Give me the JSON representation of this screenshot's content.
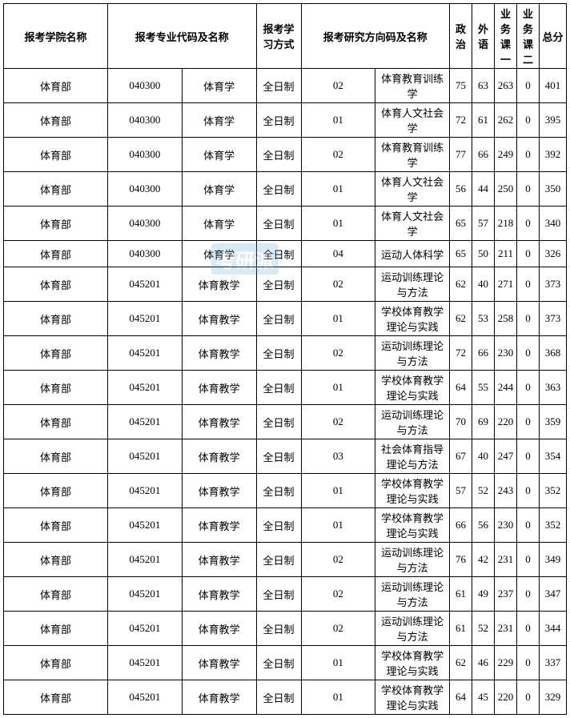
{
  "headers": {
    "school": "报考学院名称",
    "major": "报考专业代码及名称",
    "mode": "报考学习方式",
    "direction": "报考研究方向码及名称",
    "politics": "政治",
    "foreign": "外语",
    "course1": "业务课一",
    "course2": "业务课二",
    "total": "总分"
  },
  "watermark_text": "考研派",
  "watermark_sub": "kaoyan",
  "columns_width": {
    "school": 130,
    "code": 56,
    "major": 90,
    "mode": 56,
    "dircode": 26,
    "dirname": 142,
    "score": 28,
    "total": 34
  },
  "rows": [
    {
      "school": "体育部",
      "code": "040300",
      "major": "体育学",
      "mode": "全日制",
      "dircode": "02",
      "dirname": "体育教育训练学",
      "politics": 75,
      "foreign": 63,
      "course1": 263,
      "course2": 0,
      "total": 401
    },
    {
      "school": "体育部",
      "code": "040300",
      "major": "体育学",
      "mode": "全日制",
      "dircode": "01",
      "dirname": "体育人文社会学",
      "politics": 72,
      "foreign": 61,
      "course1": 262,
      "course2": 0,
      "total": 395
    },
    {
      "school": "体育部",
      "code": "040300",
      "major": "体育学",
      "mode": "全日制",
      "dircode": "02",
      "dirname": "体育教育训练学",
      "politics": 77,
      "foreign": 66,
      "course1": 249,
      "course2": 0,
      "total": 392
    },
    {
      "school": "体育部",
      "code": "040300",
      "major": "体育学",
      "mode": "全日制",
      "dircode": "01",
      "dirname": "体育人文社会学",
      "politics": 56,
      "foreign": 44,
      "course1": 250,
      "course2": 0,
      "total": 350
    },
    {
      "school": "体育部",
      "code": "040300",
      "major": "体育学",
      "mode": "全日制",
      "dircode": "01",
      "dirname": "体育人文社会学",
      "politics": 65,
      "foreign": 57,
      "course1": 218,
      "course2": 0,
      "total": 340
    },
    {
      "school": "体育部",
      "code": "040300",
      "major": "体育学",
      "mode": "全日制",
      "dircode": "04",
      "dirname": "运动人体科学",
      "politics": 65,
      "foreign": 50,
      "course1": 211,
      "course2": 0,
      "total": 326
    },
    {
      "school": "体育部",
      "code": "045201",
      "major": "体育教学",
      "mode": "全日制",
      "dircode": "02",
      "dirname": "运动训练理论与方法",
      "politics": 62,
      "foreign": 40,
      "course1": 271,
      "course2": 0,
      "total": 373
    },
    {
      "school": "体育部",
      "code": "045201",
      "major": "体育教学",
      "mode": "全日制",
      "dircode": "01",
      "dirname": "学校体育教学理论与实践",
      "politics": 62,
      "foreign": 53,
      "course1": 258,
      "course2": 0,
      "total": 373
    },
    {
      "school": "体育部",
      "code": "045201",
      "major": "体育教学",
      "mode": "全日制",
      "dircode": "02",
      "dirname": "运动训练理论与方法",
      "politics": 72,
      "foreign": 66,
      "course1": 230,
      "course2": 0,
      "total": 368
    },
    {
      "school": "体育部",
      "code": "045201",
      "major": "体育教学",
      "mode": "全日制",
      "dircode": "01",
      "dirname": "学校体育教学理论与实践",
      "politics": 64,
      "foreign": 55,
      "course1": 244,
      "course2": 0,
      "total": 363
    },
    {
      "school": "体育部",
      "code": "045201",
      "major": "体育教学",
      "mode": "全日制",
      "dircode": "02",
      "dirname": "运动训练理论与方法",
      "politics": 70,
      "foreign": 69,
      "course1": 220,
      "course2": 0,
      "total": 359
    },
    {
      "school": "体育部",
      "code": "045201",
      "major": "体育教学",
      "mode": "全日制",
      "dircode": "03",
      "dirname": "社会体育指导理论与方法",
      "politics": 67,
      "foreign": 40,
      "course1": 247,
      "course2": 0,
      "total": 354
    },
    {
      "school": "体育部",
      "code": "045201",
      "major": "体育教学",
      "mode": "全日制",
      "dircode": "01",
      "dirname": "学校体育教学理论与实践",
      "politics": 57,
      "foreign": 52,
      "course1": 243,
      "course2": 0,
      "total": 352
    },
    {
      "school": "体育部",
      "code": "045201",
      "major": "体育教学",
      "mode": "全日制",
      "dircode": "01",
      "dirname": "学校体育教学理论与实践",
      "politics": 66,
      "foreign": 56,
      "course1": 230,
      "course2": 0,
      "total": 352
    },
    {
      "school": "体育部",
      "code": "045201",
      "major": "体育教学",
      "mode": "全日制",
      "dircode": "02",
      "dirname": "运动训练理论与方法",
      "politics": 76,
      "foreign": 42,
      "course1": 231,
      "course2": 0,
      "total": 349
    },
    {
      "school": "体育部",
      "code": "045201",
      "major": "体育教学",
      "mode": "全日制",
      "dircode": "02",
      "dirname": "运动训练理论与方法",
      "politics": 61,
      "foreign": 49,
      "course1": 237,
      "course2": 0,
      "total": 347
    },
    {
      "school": "体育部",
      "code": "045201",
      "major": "体育教学",
      "mode": "全日制",
      "dircode": "02",
      "dirname": "运动训练理论与方法",
      "politics": 61,
      "foreign": 52,
      "course1": 231,
      "course2": 0,
      "total": 344
    },
    {
      "school": "体育部",
      "code": "045201",
      "major": "体育教学",
      "mode": "全日制",
      "dircode": "01",
      "dirname": "学校体育教学理论与实践",
      "politics": 62,
      "foreign": 46,
      "course1": 229,
      "course2": 0,
      "total": 337
    },
    {
      "school": "体育部",
      "code": "045201",
      "major": "体育教学",
      "mode": "全日制",
      "dircode": "01",
      "dirname": "学校体育教学理论与实践",
      "politics": 64,
      "foreign": 45,
      "course1": 220,
      "course2": 0,
      "total": 329
    }
  ]
}
